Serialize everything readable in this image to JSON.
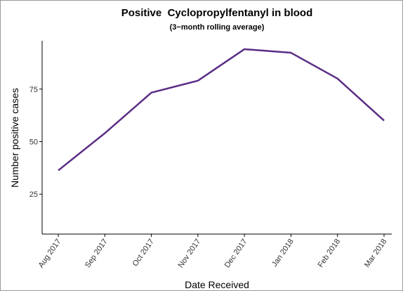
{
  "chart_data": {
    "type": "line",
    "title": "Positive  Cyclopropylfentanyl in blood",
    "subtitle": "(3−month rolling average)",
    "x_label": "Date Received",
    "y_label": "Number positive cases",
    "categories": [
      "Aug 2017",
      "Sep 2017",
      "Oct 2017",
      "Nov 2017",
      "Dec 2017",
      "Jan 2018",
      "Feb 2018",
      "Mar 2018"
    ],
    "series": [
      {
        "name": "Positive Cyclopropylfentanyl",
        "color": "#5b2d86",
        "values": [
          36.3,
          54,
          73.3,
          79,
          94,
          92.3,
          80,
          60
        ]
      }
    ],
    "ylim": [
      6,
      98
    ],
    "yticks": [
      25,
      50,
      75
    ],
    "grid": false
  }
}
